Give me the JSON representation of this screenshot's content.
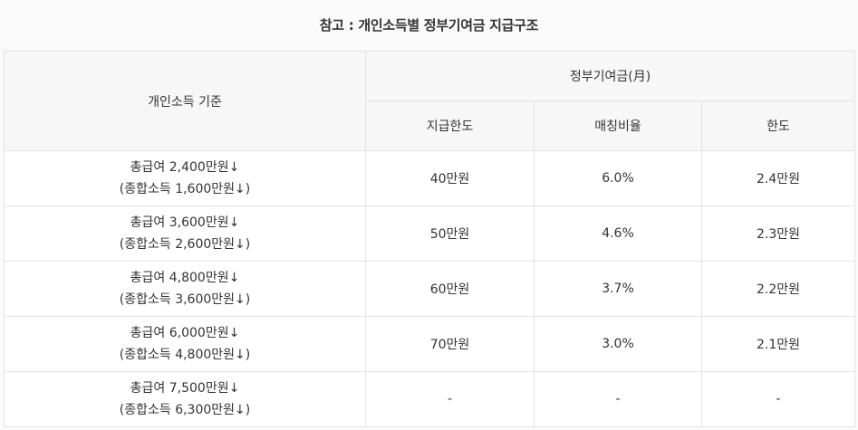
{
  "caption": "참고 : 개인소득별 정부기여금 지급구조",
  "table": {
    "header": {
      "income_col": "개인소득 기준",
      "group": "정부기여금(月)",
      "sub": [
        "지급한도",
        "매칭비율",
        "한도"
      ]
    },
    "rows": [
      {
        "line1": "총급여 2,400만원↓",
        "line2": "(종합소득 1,600만원↓)",
        "limit": "40만원",
        "ratio": "6.0%",
        "cap": "2.4만원"
      },
      {
        "line1": "총급여 3,600만원↓",
        "line2": "(종합소득 2,600만원↓)",
        "limit": "50만원",
        "ratio": "4.6%",
        "cap": "2.3만원"
      },
      {
        "line1": "총급여 4,800만원↓",
        "line2": "(종합소득 3,600만원↓)",
        "limit": "60만원",
        "ratio": "3.7%",
        "cap": "2.2만원"
      },
      {
        "line1": "총급여 6,000만원↓",
        "line2": "(종합소득 4,800만원↓)",
        "limit": "70만원",
        "ratio": "3.0%",
        "cap": "2.1만원"
      },
      {
        "line1": "총급여 7,500만원↓",
        "line2": "(종합소득 6,300만원↓)",
        "limit": "-",
        "ratio": "-",
        "cap": "-"
      }
    ]
  }
}
